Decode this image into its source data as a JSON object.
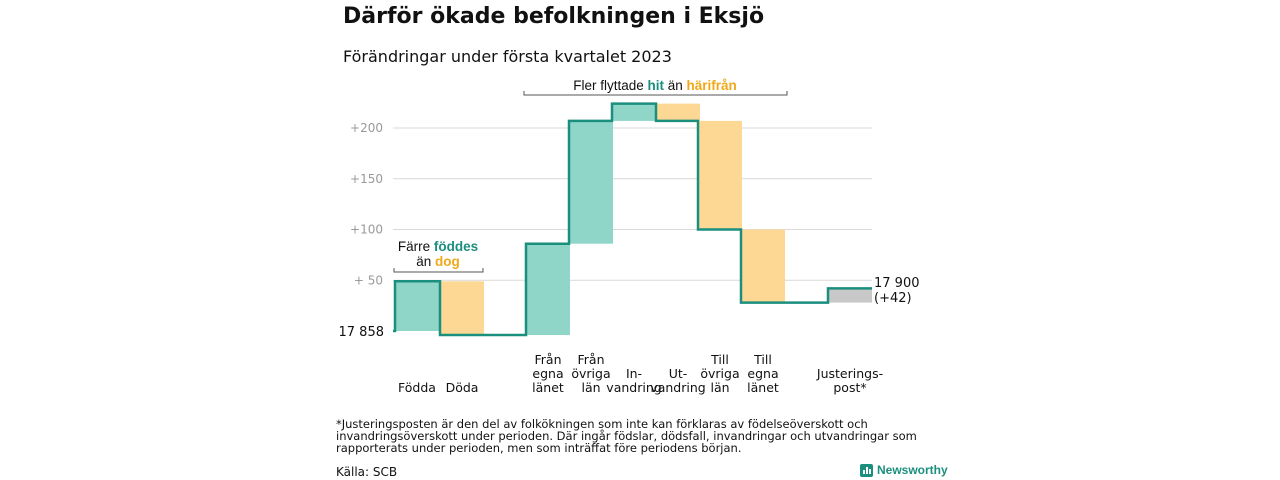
{
  "title": "Därför ökade befolkningen i Eksjö",
  "subtitle": "Förändringar under första kvartalet 2023",
  "footnote": "*Justeringsposten är den del av folkökningen som inte kan förklaras av födelseöverskott och invandringsöverskott under perioden. Där ingår födslar, dödsfall, invandringar och utvandringar som rapporterats under perioden, men som inträffat före periodens början.",
  "source": "Källa: SCB",
  "brand": "Newsworthy",
  "chart_data": {
    "type": "bar",
    "subtype": "waterfall",
    "start": {
      "value": 17858,
      "label": "17 858"
    },
    "end": {
      "value": 17900,
      "label": "17 900",
      "change_label": "(+42)"
    },
    "y_ticks": [
      {
        "label": "+200",
        "value": 200
      },
      {
        "label": "+150",
        "value": 150
      },
      {
        "label": "+100",
        "value": 100
      },
      {
        "label": "+ 50",
        "value": 50
      }
    ],
    "ylim": [
      0,
      200
    ],
    "categories": [
      {
        "label": [
          "Födda"
        ],
        "kind": "in",
        "change": 49
      },
      {
        "label": [
          "Döda"
        ],
        "kind": "out",
        "change": -53
      },
      {
        "label": [
          "Från",
          "egna",
          "länet"
        ],
        "kind": "in",
        "change": 90
      },
      {
        "label": [
          "Från",
          "övriga",
          "län"
        ],
        "kind": "in",
        "change": 121
      },
      {
        "label": [
          "In-",
          "vandring"
        ],
        "kind": "in",
        "change": 17
      },
      {
        "label": [
          "Ut-",
          "vandring"
        ],
        "kind": "out",
        "change": -17
      },
      {
        "label": [
          "Till",
          "övriga",
          "län"
        ],
        "kind": "out",
        "change": -107
      },
      {
        "label": [
          "Till",
          "egna",
          "länet"
        ],
        "kind": "out",
        "change": -72
      },
      {
        "label": [
          "Justerings-",
          "post*"
        ],
        "kind": "adjustment",
        "change": 14
      }
    ],
    "annotations": [
      {
        "parts": [
          {
            "text": "Färre "
          },
          {
            "text": "föddes",
            "style": "in"
          }
        ]
      },
      {
        "parts": [
          {
            "text": "än "
          },
          {
            "text": "dog",
            "style": "out"
          }
        ]
      },
      {
        "parts": [
          {
            "text": "Fler flyttade "
          },
          {
            "text": "hit",
            "style": "in"
          },
          {
            "text": " än "
          },
          {
            "text": "härifrån",
            "style": "out"
          }
        ]
      }
    ],
    "colors": {
      "in_fill": "#8fd6c9",
      "out_fill": "#fdd894",
      "adjustment_fill": "#c8c8c8",
      "step_line": "#1b8f7e",
      "in_text": "#1b8f7e",
      "out_text": "#f0a818",
      "grid": "#d9d9d9",
      "tick_text": "#999999",
      "bracket": "#555555"
    }
  }
}
